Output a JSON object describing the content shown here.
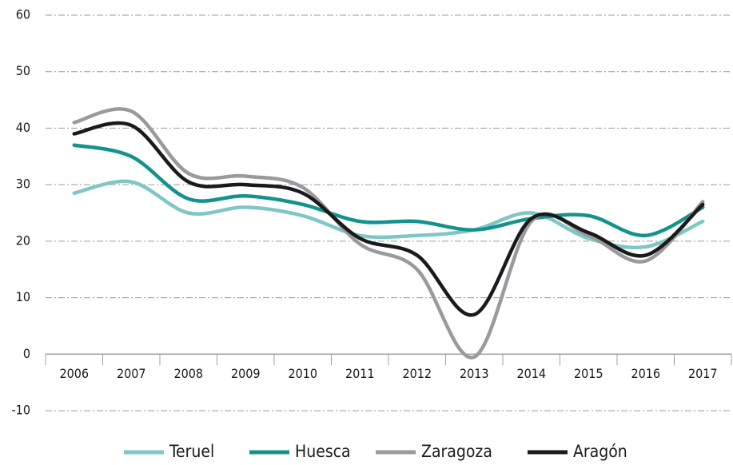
{
  "chart_data": {
    "type": "line",
    "categories": [
      "2006",
      "2007",
      "2008",
      "2009",
      "2010",
      "2011",
      "2012",
      "2013",
      "2014",
      "2015",
      "2016",
      "2017"
    ],
    "series": [
      {
        "name": "Teruel",
        "color": "#7fc6c6",
        "values": [
          28.5,
          30.5,
          25,
          26,
          24.5,
          21,
          21,
          22,
          25,
          20.5,
          19,
          23.5
        ]
      },
      {
        "name": "Huesca",
        "color": "#13938c",
        "values": [
          37,
          35,
          27.5,
          28,
          26.5,
          23.5,
          23.5,
          22,
          24,
          24.5,
          21,
          26
        ]
      },
      {
        "name": "Zaragoza",
        "color": "#999a9c",
        "values": [
          41,
          43,
          32,
          31.5,
          29.5,
          19.5,
          15,
          -0.5,
          23.5,
          21,
          16.5,
          27
        ]
      },
      {
        "name": "Aragón",
        "color": "#1a1a1a",
        "values": [
          39,
          40.5,
          30.5,
          30,
          28.5,
          20.5,
          17.5,
          7,
          24,
          21.5,
          17.5,
          26.5
        ]
      }
    ],
    "ylim": [
      -10,
      60
    ],
    "yticks": [
      -10,
      0,
      10,
      20,
      30,
      40,
      50,
      60
    ],
    "grid": true,
    "legend": "bottom"
  }
}
